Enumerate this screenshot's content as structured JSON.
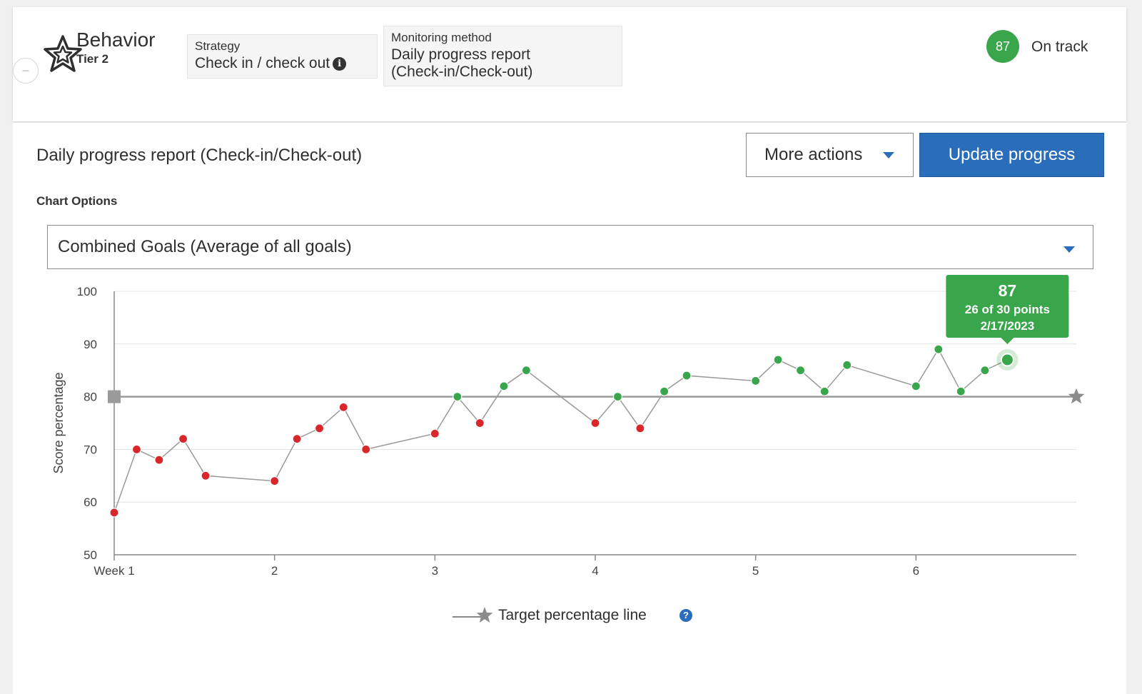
{
  "header": {
    "collapse_symbol": "−",
    "icon": "star-outline-icon",
    "title": "Behavior",
    "tier": "Tier 2",
    "strategy": {
      "label": "Strategy",
      "value": "Check in / check out",
      "info_icon": "i"
    },
    "monitoring": {
      "label": "Monitoring method",
      "value_line1": "Daily progress report",
      "value_line2": "(Check-in/Check-out)"
    },
    "score": "87",
    "status": "On track",
    "status_color": "#3aa64b"
  },
  "main": {
    "title": "Daily progress report (Check-in/Check-out)",
    "more_actions_label": "More actions",
    "update_label": "Update progress",
    "chart_options_label": "Chart Options",
    "selected_option": "Combined Goals (Average of all goals)"
  },
  "tooltip": {
    "value": "87",
    "points": "26 of 30 points",
    "date": "2/17/2023"
  },
  "legend": {
    "label": "Target percentage line",
    "help_icon": "?"
  },
  "chart_data": {
    "type": "line",
    "ylabel": "Score percentage",
    "xlabel": "",
    "ylim": [
      50,
      100
    ],
    "yticks": [
      50,
      60,
      70,
      80,
      90,
      100
    ],
    "xlim": [
      1,
      7
    ],
    "xticks": [
      {
        "x": 1,
        "label": "Week 1"
      },
      {
        "x": 2,
        "label": "2"
      },
      {
        "x": 3,
        "label": "3"
      },
      {
        "x": 4,
        "label": "4"
      },
      {
        "x": 5,
        "label": "5"
      },
      {
        "x": 6,
        "label": "6"
      }
    ],
    "target": 80,
    "grid": true,
    "colors": {
      "below": "#d9262b",
      "at_or_above": "#3aa64b",
      "line": "#999999",
      "target": "#999999"
    },
    "series": [
      {
        "points": [
          {
            "x": 1.0,
            "y": 58
          },
          {
            "x": 1.14,
            "y": 70
          },
          {
            "x": 1.28,
            "y": 68
          },
          {
            "x": 1.43,
            "y": 72
          },
          {
            "x": 1.57,
            "y": 65
          },
          {
            "x": 2.0,
            "y": 64
          },
          {
            "x": 2.14,
            "y": 72
          },
          {
            "x": 2.28,
            "y": 74
          },
          {
            "x": 2.43,
            "y": 78
          },
          {
            "x": 2.57,
            "y": 70
          },
          {
            "x": 3.0,
            "y": 73
          },
          {
            "x": 3.14,
            "y": 80
          },
          {
            "x": 3.28,
            "y": 75
          },
          {
            "x": 3.43,
            "y": 82
          },
          {
            "x": 3.57,
            "y": 85
          },
          {
            "x": 4.0,
            "y": 75
          },
          {
            "x": 4.14,
            "y": 80
          },
          {
            "x": 4.28,
            "y": 74
          },
          {
            "x": 4.43,
            "y": 81
          },
          {
            "x": 4.57,
            "y": 84
          },
          {
            "x": 5.0,
            "y": 83
          },
          {
            "x": 5.14,
            "y": 87
          },
          {
            "x": 5.28,
            "y": 85
          },
          {
            "x": 5.43,
            "y": 81
          },
          {
            "x": 5.57,
            "y": 86
          },
          {
            "x": 6.0,
            "y": 82
          },
          {
            "x": 6.14,
            "y": 89
          },
          {
            "x": 6.28,
            "y": 81
          },
          {
            "x": 6.43,
            "y": 85
          },
          {
            "x": 6.57,
            "y": 87
          }
        ]
      }
    ],
    "highlighted_point_index": 29
  }
}
